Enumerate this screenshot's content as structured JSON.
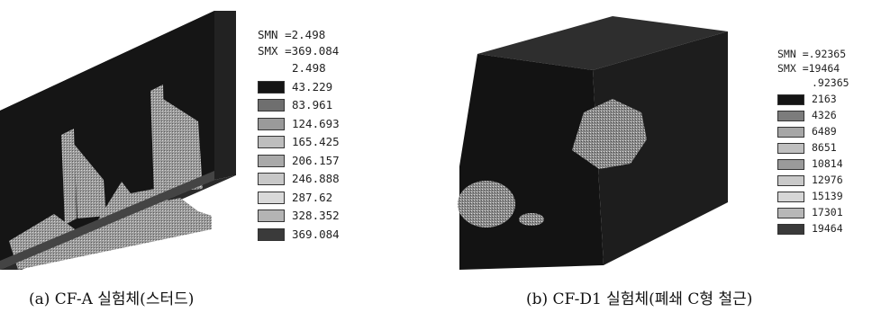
{
  "figure_a": {
    "caption": "(a) CF-A 실험체(스터드)",
    "legend": {
      "smn": "SMN =2.498",
      "smx": "SMX =369.084",
      "levels": [
        "2.498",
        "43.229",
        "83.961",
        "124.693",
        "165.425",
        "206.157",
        "246.888",
        "287.62",
        "328.352",
        "369.084"
      ],
      "colors": [
        "#f4f4f4",
        "#141414",
        "#6f6f6f",
        "#9a9a9a",
        "#bdbdbd",
        "#a9a9a9",
        "#c8c8c8",
        "#d9d9d9",
        "#b4b4b4",
        "#3a3a3a"
      ]
    }
  },
  "figure_b": {
    "caption": "(b) CF-D1 실험체(폐쇄 C형 철근)",
    "legend": {
      "smn": "SMN =.92365",
      "smx": "SMX =19464",
      "levels": [
        ".92365",
        "2163",
        "4326",
        "6489",
        "8651",
        "10814",
        "12976",
        "15139",
        "17301",
        "19464"
      ],
      "colors": [
        "#f4f4f4",
        "#141414",
        "#7c7c7c",
        "#a6a6a6",
        "#bfbfbf",
        "#9a9a9a",
        "#c9c9c9",
        "#d6d6d6",
        "#b7b7b7",
        "#3a3a3a"
      ]
    }
  }
}
